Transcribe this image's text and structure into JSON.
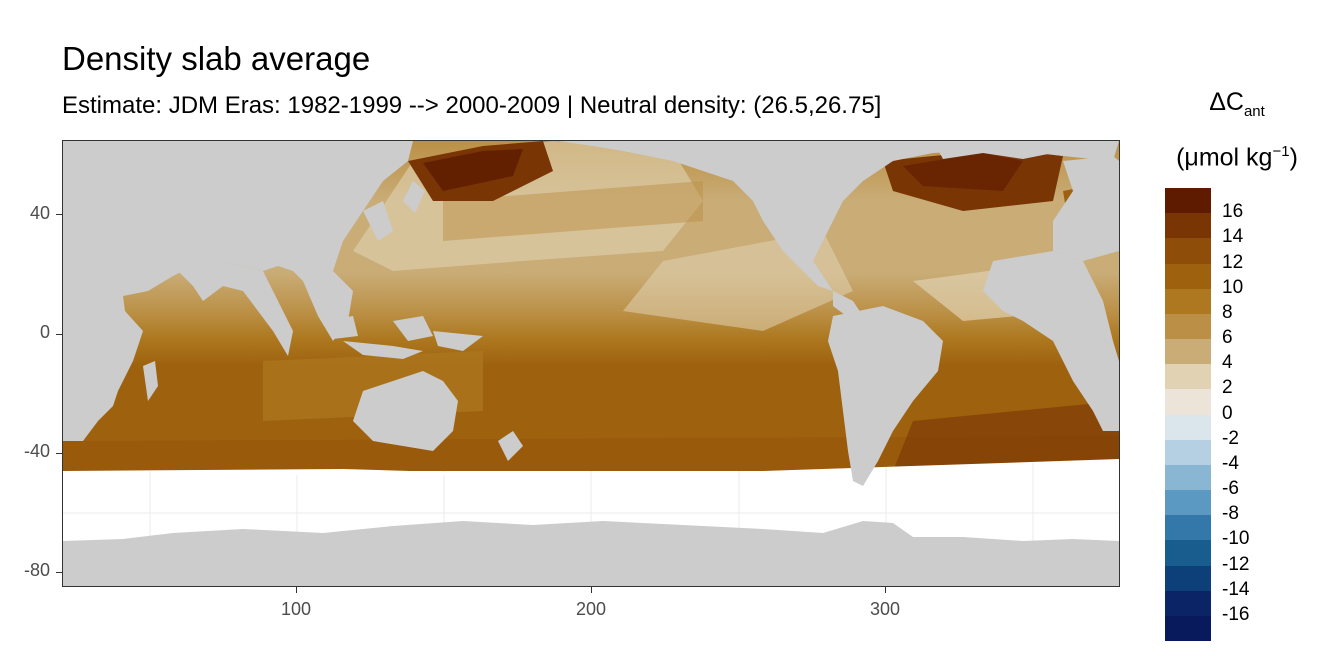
{
  "title": "Density slab average",
  "subtitle": "Estimate: JDM Eras: 1982-1999 --> 2000-2009 | Neutral density: (26.5,26.75]",
  "legend": {
    "title_main": "ΔC",
    "title_sub": "ant",
    "title_unit_open": "(μmol kg",
    "title_unit_sup": "−1",
    "title_unit_close": ")",
    "labels": [
      "16",
      "14",
      "12",
      "10",
      "8",
      "6",
      "4",
      "2",
      "0",
      "-2",
      "-4",
      "-6",
      "-8",
      "-10",
      "-12",
      "-14",
      "-16"
    ],
    "colors": [
      "#5e1b00",
      "#7a3504",
      "#8e4d08",
      "#9e620f",
      "#ad781f",
      "#bb9046",
      "#c9ac76",
      "#e0d2b2",
      "#ece4d8",
      "#dbe5ec",
      "#b6d0e3",
      "#89b6d3",
      "#5c99c2",
      "#3478a9",
      "#185d8e",
      "#0d3f78",
      "#0a2466",
      "#081a5c"
    ]
  },
  "axes": {
    "x_ticks": [
      "100",
      "200",
      "300"
    ],
    "y_ticks": [
      "40",
      "0",
      "-40",
      "-80"
    ]
  },
  "colors": {
    "land": "#cccccc",
    "no_data": "#ffffff",
    "panel_border": "#333333",
    "grid": "#ebebeb"
  }
}
